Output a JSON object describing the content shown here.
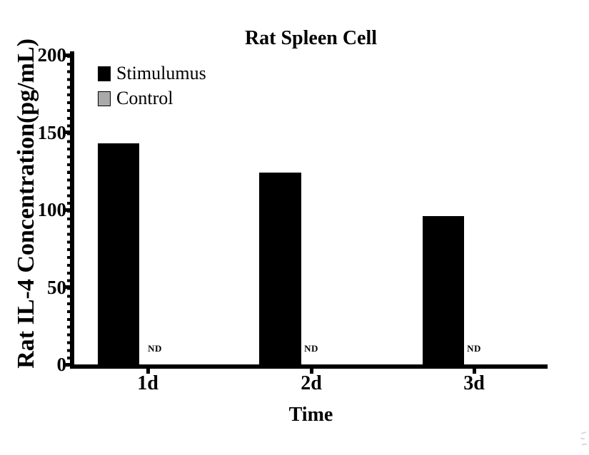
{
  "chart_data": {
    "type": "bar",
    "title": "Rat Spleen Cell",
    "xlabel": "Time",
    "ylabel": "Rat IL-4 Concentration(pg/mL)",
    "categories": [
      "1d",
      "2d",
      "3d"
    ],
    "series": [
      {
        "name": "Stimulumus",
        "color": "#000000",
        "values": [
          143,
          124,
          96
        ]
      },
      {
        "name": "Control",
        "color": "#a9a9a9",
        "values": [
          "ND",
          "ND",
          "ND"
        ]
      }
    ],
    "ylim": [
      0,
      200
    ],
    "yticks": [
      "0",
      "50",
      "100",
      "150",
      "200"
    ],
    "minor_tick_step": 5,
    "grid": false,
    "legend_position": "upper-left-inside",
    "axis_color": "#000000"
  }
}
